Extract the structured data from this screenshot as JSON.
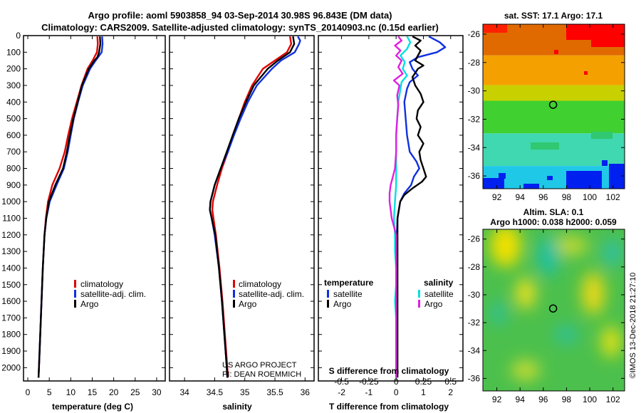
{
  "header": {
    "title_line1": "Argo profile: aoml 5903858_94 03-Sep-2014 30.98S 96.843E (DM data)",
    "title_line2": "Climatology: CARS2009. Satellite-adjusted climatology: synTS_20140903.nc (0.15d earlier)"
  },
  "colors": {
    "climatology": "#e00000",
    "satellite": "#1030e0",
    "argo": "#000000",
    "sat_salinity": "#00e0e0",
    "argo_salinity": "#e020e0"
  },
  "chart_data": [
    {
      "type": "line",
      "name": "temperature-panel",
      "xlabel": "temperature (deg C)",
      "ylabel": "",
      "xlim": [
        -1,
        32
      ],
      "ylim": [
        2080,
        0
      ],
      "xticks": [
        0,
        5,
        10,
        15,
        20,
        25,
        30
      ],
      "yticks": [
        0,
        100,
        200,
        300,
        400,
        500,
        600,
        700,
        800,
        900,
        1000,
        1100,
        1200,
        1300,
        1400,
        1500,
        1600,
        1700,
        1800,
        1900,
        2000
      ],
      "legend": [
        "climatology",
        "satellite-adj. clim.",
        "Argo"
      ],
      "series": [
        {
          "name": "climatology",
          "depth": [
            5,
            50,
            100,
            150,
            200,
            300,
            400,
            500,
            600,
            700,
            800,
            900,
            1000,
            1100,
            1200,
            1400,
            1600,
            1800,
            2000,
            2060
          ],
          "values": [
            16.2,
            16.3,
            16.1,
            15.1,
            13.9,
            12.5,
            11.4,
            10.3,
            9.4,
            8.6,
            7.4,
            5.7,
            4.7,
            4.2,
            3.9,
            3.5,
            3.2,
            2.9,
            2.6,
            2.5
          ]
        },
        {
          "name": "satellite-adj. clim.",
          "depth": [
            5,
            50,
            100,
            150,
            200,
            300,
            400,
            500,
            600,
            700,
            800,
            900,
            1000,
            1100,
            1200,
            1400,
            1600,
            1800,
            2000,
            2060
          ],
          "values": [
            17.3,
            17.4,
            17.2,
            15.8,
            14.5,
            12.8,
            11.7,
            10.7,
            10.0,
            9.3,
            8.4,
            6.7,
            5.1,
            4.3,
            3.9,
            3.5,
            3.2,
            2.9,
            2.6,
            2.5
          ]
        },
        {
          "name": "Argo",
          "depth": [
            5,
            50,
            100,
            130,
            150,
            200,
            300,
            400,
            500,
            600,
            700,
            800,
            900,
            1000,
            1100,
            1200,
            1400,
            1600,
            1800,
            2000,
            2060
          ],
          "values": [
            16.8,
            16.9,
            16.6,
            16.2,
            15.5,
            14.2,
            12.6,
            11.6,
            10.6,
            9.8,
            9.1,
            8.2,
            6.4,
            4.9,
            4.3,
            3.9,
            3.5,
            3.2,
            2.9,
            2.6,
            2.5
          ]
        }
      ]
    },
    {
      "type": "line",
      "name": "salinity-panel",
      "xlabel": "salinity",
      "ylabel": "",
      "xlim": [
        33.75,
        36.15
      ],
      "ylim": [
        2080,
        0
      ],
      "xticks": [
        34,
        34.5,
        35,
        35.5,
        36
      ],
      "legend": [
        "climatology",
        "satellite-adj. clim.",
        "Argo"
      ],
      "annotation": [
        "US ARGO PROJECT",
        "PI: DEAN ROEMMICH"
      ],
      "series": [
        {
          "name": "climatology",
          "depth": [
            5,
            50,
            100,
            150,
            200,
            300,
            400,
            500,
            600,
            700,
            800,
            900,
            1000,
            1050,
            1100,
            1200,
            1400,
            1600,
            1800,
            2000,
            2060
          ],
          "values": [
            35.75,
            35.77,
            35.7,
            35.5,
            35.3,
            35.12,
            35.0,
            34.9,
            34.8,
            34.72,
            34.62,
            34.54,
            34.47,
            34.46,
            34.48,
            34.52,
            34.58,
            34.63,
            34.67,
            34.71,
            34.72
          ]
        },
        {
          "name": "satellite-adj. clim.",
          "depth": [
            5,
            30,
            50,
            100,
            150,
            200,
            300,
            400,
            500,
            600,
            700,
            800,
            900,
            1000,
            1050,
            1100,
            1200,
            1400,
            1600,
            1800,
            2000,
            2060
          ],
          "values": [
            35.88,
            35.92,
            35.9,
            35.83,
            35.6,
            35.45,
            35.2,
            35.05,
            34.93,
            34.82,
            34.72,
            34.6,
            34.5,
            34.43,
            34.42,
            34.45,
            34.5,
            34.57,
            34.62,
            34.66,
            34.7,
            34.71
          ]
        },
        {
          "name": "Argo",
          "depth": [
            5,
            50,
            100,
            150,
            200,
            300,
            400,
            500,
            600,
            700,
            800,
            900,
            1000,
            1050,
            1100,
            1200,
            1400,
            1600,
            1800,
            2000,
            2060
          ],
          "values": [
            35.8,
            35.82,
            35.75,
            35.55,
            35.38,
            35.15,
            35.02,
            34.9,
            34.8,
            34.7,
            34.6,
            34.5,
            34.43,
            34.42,
            34.45,
            34.51,
            34.57,
            34.62,
            34.66,
            34.7,
            34.71
          ]
        }
      ]
    },
    {
      "type": "line",
      "name": "difference-panel",
      "xlabel": "T difference from climatology",
      "top_axis_label": "S difference from climatology",
      "xlim": [
        -2.85,
        2.45
      ],
      "ylim": [
        2080,
        0
      ],
      "xticks": [
        -2,
        -1,
        0,
        1,
        2
      ],
      "top_xticks": [
        "-0.5",
        "-0.25",
        "0",
        "0.25",
        "0.5"
      ],
      "legend_temperature": {
        "heading": "temperature",
        "entries": [
          "satellite",
          "Argo"
        ]
      },
      "legend_salinity": {
        "heading": "salinity",
        "entries": [
          "satellite",
          "Argo"
        ]
      },
      "series": [
        {
          "name": "T satellite",
          "depth": [
            5,
            40,
            70,
            100,
            130,
            160,
            200,
            240,
            280,
            320,
            400,
            500,
            600,
            700,
            760,
            800,
            850,
            900,
            950,
            1000,
            1100,
            1300,
            1500,
            1700,
            1900,
            2060
          ],
          "values": [
            1.2,
            1.6,
            1.8,
            1.5,
            0.8,
            0.5,
            0.6,
            0.8,
            0.5,
            0.4,
            0.3,
            0.35,
            0.4,
            0.5,
            0.75,
            0.85,
            0.65,
            0.55,
            0.3,
            0.15,
            0.05,
            0.0,
            0.0,
            0.0,
            0.0,
            0.0
          ]
        },
        {
          "name": "T Argo",
          "depth": [
            5,
            30,
            60,
            90,
            120,
            150,
            180,
            200,
            250,
            300,
            350,
            400,
            450,
            500,
            550,
            600,
            650,
            700,
            750,
            800,
            850,
            880,
            920,
            960,
            1000,
            1050,
            1100,
            1200,
            1400,
            1600,
            1800,
            2000,
            2060
          ],
          "values": [
            0.6,
            0.9,
            0.7,
            0.9,
            0.8,
            0.7,
            1.0,
            0.8,
            0.6,
            0.7,
            0.9,
            1.0,
            0.8,
            0.75,
            0.9,
            0.8,
            1.0,
            0.85,
            0.9,
            1.0,
            1.1,
            0.95,
            0.6,
            0.3,
            0.15,
            0.1,
            0.05,
            0.05,
            0.05,
            0.05,
            0.05,
            0.05,
            0.05
          ]
        },
        {
          "name": "S satellite",
          "depth": [
            5,
            40,
            80,
            120,
            160,
            200,
            240,
            280,
            320,
            400,
            500,
            600,
            700,
            800,
            900,
            1000,
            1100,
            1200,
            1300,
            1400,
            1500,
            1600,
            1700,
            1800,
            1900,
            2000,
            2060
          ],
          "values": [
            0.1,
            0.13,
            0.1,
            0.04,
            0.08,
            0.06,
            0.1,
            0.05,
            0.04,
            0.02,
            0.01,
            0.0,
            0.0,
            0.0,
            0.0,
            -0.01,
            -0.02,
            -0.01,
            -0.01,
            0.0,
            0.0,
            -0.01,
            0.0,
            0.0,
            0.0,
            0.0,
            0.0
          ]
        },
        {
          "name": "S Argo",
          "depth": [
            5,
            30,
            60,
            90,
            120,
            150,
            190,
            230,
            270,
            300,
            360,
            420,
            500,
            600,
            700,
            800,
            850,
            900,
            950,
            1000,
            1050,
            1100,
            1150,
            1200,
            1300,
            1400,
            1500,
            1600,
            1700,
            1800,
            1900,
            2000,
            2060
          ],
          "values": [
            0.02,
            0.05,
            -0.01,
            0.04,
            0.0,
            0.05,
            0.02,
            0.06,
            -0.02,
            0.03,
            0.01,
            0.02,
            0.01,
            0.0,
            0.0,
            -0.01,
            -0.03,
            -0.05,
            -0.06,
            -0.06,
            -0.05,
            -0.04,
            -0.02,
            0.0,
            0.0,
            0.0,
            0.0,
            0.0,
            0.0,
            0.0,
            0.0,
            0.0,
            0.0
          ]
        }
      ]
    },
    {
      "type": "heatmap",
      "name": "sst-map",
      "title": "sat. SST: 17.1 Argo: 17.1",
      "xlim": [
        90.8,
        103
      ],
      "ylim": [
        -36.9,
        -25.3
      ],
      "xticks": [
        92,
        94,
        96,
        98,
        100,
        102
      ],
      "yticks": [
        -26,
        -28,
        -30,
        -32,
        -34,
        -36
      ],
      "marker": {
        "lon": 96.843,
        "lat": -30.98
      },
      "bands": [
        {
          "lat_top": -25.3,
          "lat_bottom": -27.5,
          "color": "#e06a00"
        },
        {
          "lat_top": -27.5,
          "lat_bottom": -29.6,
          "color": "#f4a000"
        },
        {
          "lat_top": -29.6,
          "lat_bottom": -30.7,
          "color": "#c8d000"
        },
        {
          "lat_top": -30.7,
          "lat_bottom": -33.0,
          "color": "#40d030"
        },
        {
          "lat_top": -33.0,
          "lat_bottom": -35.3,
          "color": "#40d8b0"
        },
        {
          "lat_top": -35.3,
          "lat_bottom": -36.9,
          "color": "#20c8e8"
        }
      ]
    },
    {
      "type": "heatmap",
      "name": "sla-map",
      "title_line1": "Altim. SLA: 0.1",
      "title_line2": "Argo h1000: 0.038 h2000: 0.059",
      "xlim": [
        90.8,
        103
      ],
      "ylim": [
        -36.9,
        -25.3
      ],
      "xticks": [
        92,
        94,
        96,
        98,
        100,
        102
      ],
      "yticks": [
        -26,
        -28,
        -30,
        -32,
        -34,
        -36
      ],
      "marker": {
        "lon": 96.843,
        "lat": -30.98
      }
    }
  ],
  "footer": {
    "credit": "©IMOS 13-Dec-2018 21:27:10"
  }
}
